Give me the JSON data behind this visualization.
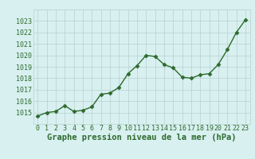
{
  "x": [
    0,
    1,
    2,
    3,
    4,
    5,
    6,
    7,
    8,
    9,
    10,
    11,
    12,
    13,
    14,
    15,
    16,
    17,
    18,
    19,
    20,
    21,
    22,
    23
  ],
  "y": [
    1014.7,
    1015.0,
    1015.1,
    1015.6,
    1015.1,
    1015.2,
    1015.5,
    1016.6,
    1016.7,
    1017.2,
    1018.4,
    1019.1,
    1020.0,
    1019.9,
    1019.2,
    1018.9,
    1018.1,
    1018.0,
    1018.3,
    1018.4,
    1019.2,
    1020.5,
    1022.0,
    1023.1
  ],
  "line_color": "#2d6a2d",
  "marker": "D",
  "marker_size": 2.5,
  "bg_color": "#d8f0f0",
  "grid_color": "#b8d0d0",
  "xlabel": "Graphe pression niveau de la mer (hPa)",
  "ylim_min": 1014,
  "ylim_max": 1024,
  "ytick_step": 1,
  "xtick_labels": [
    "0",
    "1",
    "2",
    "3",
    "4",
    "5",
    "6",
    "7",
    "8",
    "9",
    "10",
    "11",
    "12",
    "13",
    "14",
    "15",
    "16",
    "17",
    "18",
    "19",
    "20",
    "21",
    "22",
    "23"
  ],
  "title_color": "#2d6a2d",
  "linewidth": 1.0,
  "tick_fontsize": 6.0,
  "label_fontsize": 7.5
}
